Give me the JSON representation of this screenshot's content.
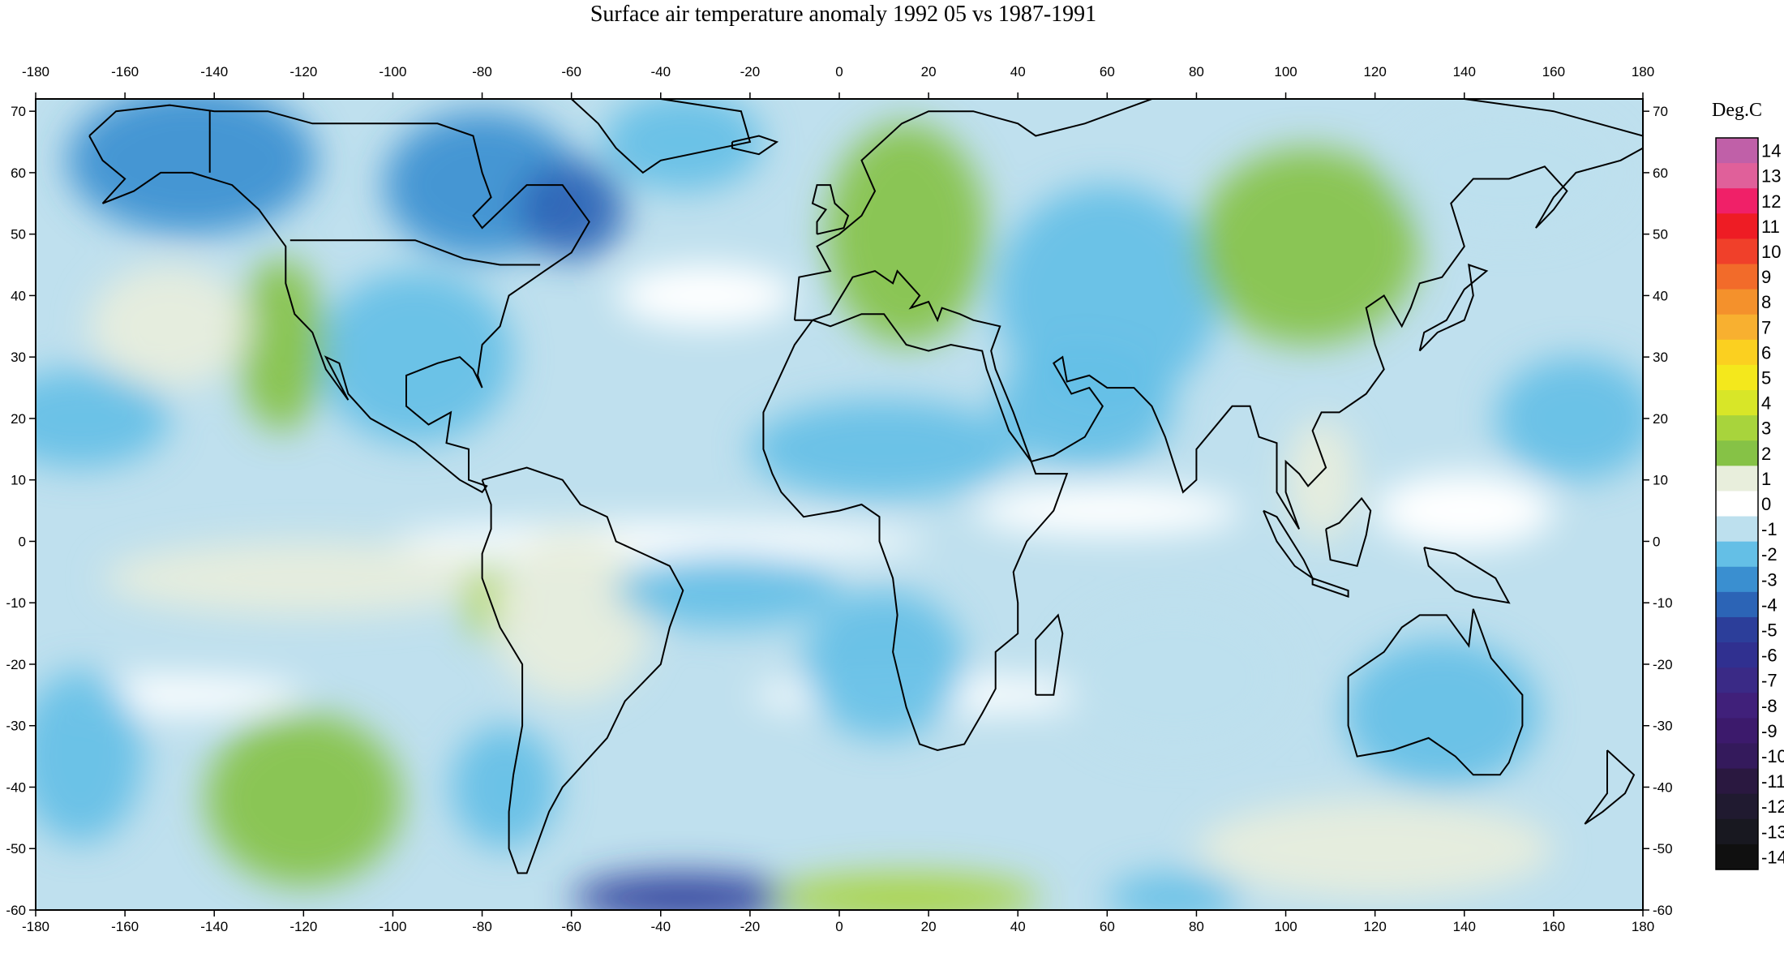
{
  "title": "Surface air temperature anomaly 1992 05 vs 1987-1991",
  "map": {
    "lon_range": [
      -180,
      180
    ],
    "lat_range": [
      -60,
      72
    ],
    "lon_ticks": [
      -180,
      -160,
      -140,
      -120,
      -100,
      -80,
      -60,
      -40,
      -20,
      0,
      20,
      40,
      60,
      80,
      100,
      120,
      140,
      160,
      180
    ],
    "lat_ticks": [
      -60,
      -50,
      -40,
      -30,
      -20,
      -10,
      0,
      10,
      20,
      30,
      40,
      50,
      60,
      70
    ],
    "coastlines": "black outlines",
    "fill_base_color": "#bfe0ee",
    "anomaly_regions": [
      {
        "name": "alaska-cold",
        "lon": -145,
        "lat": 62,
        "rx": 28,
        "ry": 12,
        "value": -3
      },
      {
        "name": "canada-cold",
        "lon": -80,
        "lat": 58,
        "rx": 22,
        "ry": 12,
        "value": -3
      },
      {
        "name": "hudson-cold",
        "lon": -60,
        "lat": 54,
        "rx": 12,
        "ry": 8,
        "value": -4
      },
      {
        "name": "greenland-cold",
        "lon": -35,
        "lat": 65,
        "rx": 18,
        "ry": 8,
        "value": -2
      },
      {
        "name": "us-east-cold",
        "lon": -95,
        "lat": 30,
        "rx": 22,
        "ry": 14,
        "value": -2
      },
      {
        "name": "pacific-20n-cold",
        "lon": -170,
        "lat": 20,
        "rx": 20,
        "ry": 8,
        "value": -2
      },
      {
        "name": "west-us-warm",
        "lon": -125,
        "lat": 32,
        "rx": 10,
        "ry": 14,
        "value": 2
      },
      {
        "name": "pacific-nw-cool",
        "lon": -150,
        "lat": 35,
        "rx": 18,
        "ry": 10,
        "value": 1
      },
      {
        "name": "equatorial-pacific-warm",
        "lon": -120,
        "lat": -6,
        "rx": 45,
        "ry": 6,
        "value": 1
      },
      {
        "name": "peru-warm",
        "lon": -78,
        "lat": -10,
        "rx": 6,
        "ry": 6,
        "value": 3
      },
      {
        "name": "amazon-warm",
        "lon": -60,
        "lat": -12,
        "rx": 18,
        "ry": 14,
        "value": 1
      },
      {
        "name": "south-pacific-warm",
        "lon": -120,
        "lat": -42,
        "rx": 22,
        "ry": 14,
        "value": 2
      },
      {
        "name": "south-pacific-cold",
        "lon": -170,
        "lat": -35,
        "rx": 14,
        "ry": 14,
        "value": -2
      },
      {
        "name": "south-america-cold",
        "lon": -75,
        "lat": -40,
        "rx": 12,
        "ry": 10,
        "value": -2
      },
      {
        "name": "south-atlantic-cold",
        "lon": -25,
        "lat": -8,
        "rx": 25,
        "ry": 6,
        "value": -2
      },
      {
        "name": "africa-cold",
        "lon": 10,
        "lat": 15,
        "rx": 30,
        "ry": 8,
        "value": -2
      },
      {
        "name": "south-africa-cold",
        "lon": 10,
        "lat": -20,
        "rx": 18,
        "ry": 12,
        "value": -2
      },
      {
        "name": "indian-ocean-cold",
        "lon": 75,
        "lat": -22,
        "rx": 25,
        "ry": 12,
        "value": -1
      },
      {
        "name": "europe-warm",
        "lon": 15,
        "lat": 50,
        "rx": 18,
        "ry": 18,
        "value": 2
      },
      {
        "name": "russia-cold",
        "lon": 60,
        "lat": 40,
        "rx": 25,
        "ry": 18,
        "value": -2
      },
      {
        "name": "mongolia-warm",
        "lon": 105,
        "lat": 48,
        "rx": 25,
        "ry": 16,
        "value": 2
      },
      {
        "name": "arabia-cold",
        "lon": 55,
        "lat": 22,
        "rx": 20,
        "ry": 10,
        "value": -2
      },
      {
        "name": "southeast-asia-warm",
        "lon": 108,
        "lat": 10,
        "rx": 8,
        "ry": 10,
        "value": 1
      },
      {
        "name": "australia-cold",
        "lon": 135,
        "lat": -28,
        "rx": 22,
        "ry": 12,
        "value": -2
      },
      {
        "name": "north-pacific-cold",
        "lon": 165,
        "lat": 20,
        "rx": 18,
        "ry": 10,
        "value": -2
      },
      {
        "name": "siberia-cold",
        "lon": 150,
        "lat": 60,
        "rx": 25,
        "ry": 10,
        "value": -1
      },
      {
        "name": "southern-ocean-warm",
        "lon": 120,
        "lat": -50,
        "rx": 40,
        "ry": 8,
        "value": 1
      },
      {
        "name": "antarctic-cold-1",
        "lon": -35,
        "lat": -58,
        "rx": 25,
        "ry": 4,
        "value": -5
      },
      {
        "name": "antarctic-warm-1",
        "lon": 15,
        "lat": -58,
        "rx": 30,
        "ry": 4,
        "value": 3
      },
      {
        "name": "antarctic-cold-2",
        "lon": 75,
        "lat": -58,
        "rx": 15,
        "ry": 4,
        "value": -2
      }
    ]
  },
  "colorbar": {
    "unit": "Deg.C",
    "levels": [
      14,
      13,
      12,
      11,
      10,
      9,
      8,
      7,
      6,
      5,
      4,
      3,
      2,
      1,
      0,
      -1,
      -2,
      -3,
      -4,
      -5,
      -6,
      -7,
      -8,
      -9,
      -10,
      -11,
      -12,
      -13,
      -14
    ],
    "labels": [
      "14",
      "13",
      "12",
      "11",
      "10",
      "9",
      "8",
      "7",
      "6",
      "5",
      "4",
      "3",
      "2",
      "1",
      "0",
      "-1",
      "-2",
      "-3",
      "-4",
      "-5",
      "-6",
      "-7",
      "-8",
      "-9",
      "-10",
      "-11",
      "-12",
      "-13",
      "-14"
    ],
    "colors": [
      "#c060a8",
      "#e0609a",
      "#f02068",
      "#ee1c24",
      "#f0402a",
      "#f26b2a",
      "#f4912c",
      "#f8b030",
      "#fbd020",
      "#f4e81c",
      "#d8e628",
      "#a8d43c",
      "#86c246",
      "#e8eedc",
      "#ffffff",
      "#bde0ee",
      "#64bfe6",
      "#3a8fd0",
      "#2c64b6",
      "#2c3e9a",
      "#303090",
      "#3a2a86",
      "#40207a",
      "#3c1a6c",
      "#341a5c",
      "#2a1840",
      "#201a30",
      "#181820",
      "#101010"
    ]
  }
}
